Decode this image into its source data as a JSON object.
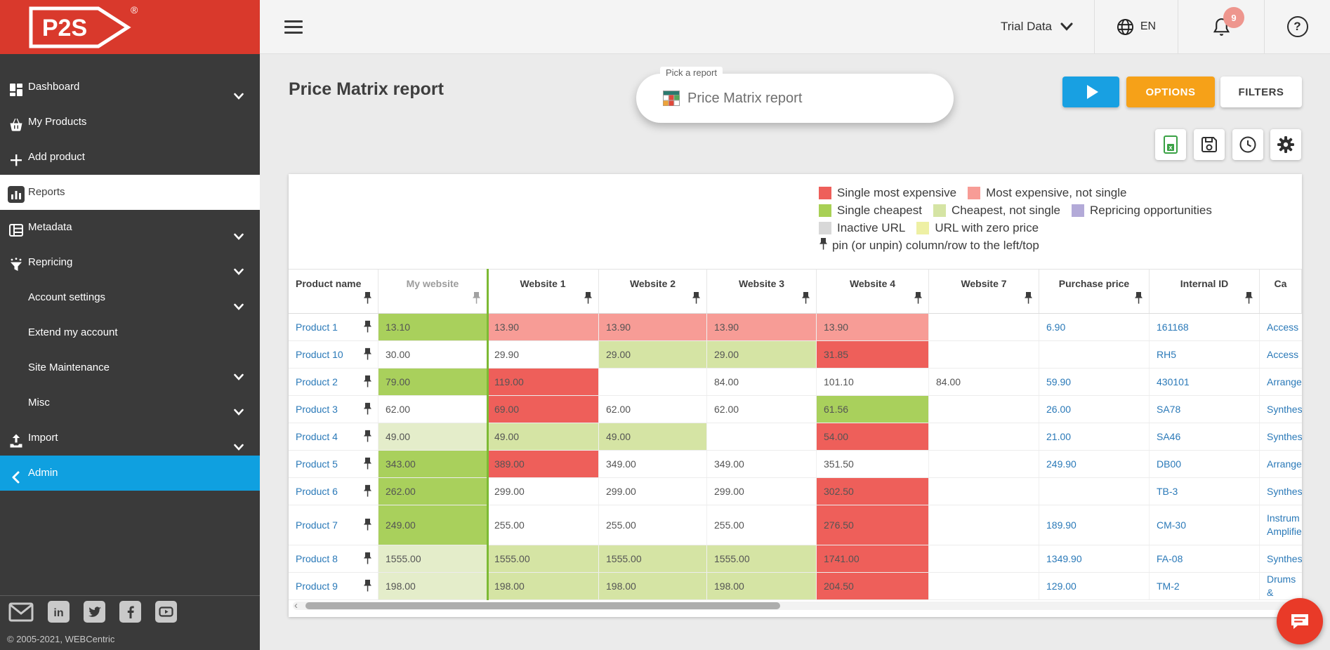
{
  "brand": {
    "logo_text": "P2S",
    "registered": "®",
    "copyright": "© 2005-2021, WEBCentric"
  },
  "sidebar": {
    "items": [
      {
        "label": "Dashboard",
        "icon": "dashboard",
        "chevron": true
      },
      {
        "label": "My Products",
        "icon": "basket"
      },
      {
        "label": "Add product",
        "icon": "plus"
      },
      {
        "label": "Reports",
        "icon": "reports",
        "active": true
      },
      {
        "label": "Metadata",
        "icon": "metadata",
        "chevron": true
      },
      {
        "label": "Repricing",
        "icon": "repricing",
        "chevron": true
      },
      {
        "label": "Account settings",
        "chevron": true
      },
      {
        "label": "Extend my account"
      },
      {
        "label": "Site Maintenance",
        "chevron": true
      },
      {
        "label": "Misc",
        "chevron": true
      },
      {
        "label": "Import",
        "icon": "import",
        "chevron": true
      },
      {
        "label": "Admin",
        "icon": "chevleft",
        "admin": true
      }
    ],
    "social": [
      "email",
      "linkedin",
      "twitter",
      "facebook",
      "youtube"
    ]
  },
  "topbar": {
    "account": "Trial Data",
    "language": "EN",
    "notification_count": "9",
    "help_label": "?"
  },
  "header": {
    "title": "Price Matrix report",
    "picker_label": "Pick a report",
    "picker_value": "Price Matrix report",
    "options_label": "OPTIONS",
    "filters_label": "FILTERS"
  },
  "legend": {
    "rows": [
      [
        {
          "label": "Single most expensive",
          "color": "#ee5f5a"
        },
        {
          "label": "Most expensive, not single",
          "color": "#f79c96"
        }
      ],
      [
        {
          "label": "Single cheapest",
          "color": "#a8d055"
        },
        {
          "label": "Cheapest, not single",
          "color": "#d5e4a4"
        },
        {
          "label": "Repricing opportunities",
          "color": "#b3aad8"
        }
      ],
      [
        {
          "label": "Inactive URL",
          "color": "#d8d8d8"
        },
        {
          "label": "URL with zero price",
          "color": "#eef0a4"
        }
      ]
    ],
    "pin_note": "pin (or unpin) column/row to the left/top"
  },
  "table": {
    "columns": [
      {
        "label": "Product name",
        "pin": true
      },
      {
        "label": "My website",
        "pin": true,
        "muted": true
      },
      {
        "label": "Website 1",
        "pin": true
      },
      {
        "label": "Website 2",
        "pin": true
      },
      {
        "label": "Website 3",
        "pin": true
      },
      {
        "label": "Website 4",
        "pin": true
      },
      {
        "label": "Website 7",
        "pin": true
      },
      {
        "label": "Purchase price",
        "pin": true
      },
      {
        "label": "Internal ID",
        "pin": true
      },
      {
        "label": "Ca",
        "pin": false
      }
    ],
    "rows": [
      {
        "product": "Product 1",
        "cells": [
          {
            "v": "13.10",
            "c": "sc"
          },
          {
            "v": "13.90",
            "c": "mens"
          },
          {
            "v": "13.90",
            "c": "mens"
          },
          {
            "v": "13.90",
            "c": "mens"
          },
          {
            "v": "13.90",
            "c": "mens"
          },
          {
            "v": "",
            "c": ""
          }
        ],
        "purchase_price": "6.90",
        "internal_id": "161168",
        "category": "Access"
      },
      {
        "product": "Product 10",
        "cells": [
          {
            "v": "30.00",
            "c": ""
          },
          {
            "v": "29.90",
            "c": ""
          },
          {
            "v": "29.00",
            "c": "cns"
          },
          {
            "v": "29.00",
            "c": "cns"
          },
          {
            "v": "31.85",
            "c": "sme"
          },
          {
            "v": "",
            "c": ""
          }
        ],
        "purchase_price": "",
        "internal_id": "RH5",
        "category": "Access"
      },
      {
        "product": "Product 2",
        "cells": [
          {
            "v": "79.00",
            "c": "sc"
          },
          {
            "v": "119.00",
            "c": "sme"
          },
          {
            "v": "",
            "c": ""
          },
          {
            "v": "84.00",
            "c": ""
          },
          {
            "v": "101.10",
            "c": ""
          },
          {
            "v": "84.00",
            "c": ""
          }
        ],
        "purchase_price": "59.90",
        "internal_id": "430101",
        "category": "Arrange"
      },
      {
        "product": "Product 3",
        "cells": [
          {
            "v": "62.00",
            "c": ""
          },
          {
            "v": "69.00",
            "c": "sme"
          },
          {
            "v": "62.00",
            "c": ""
          },
          {
            "v": "62.00",
            "c": ""
          },
          {
            "v": "61.56",
            "c": "sc"
          },
          {
            "v": "",
            "c": ""
          }
        ],
        "purchase_price": "26.00",
        "internal_id": "SA78",
        "category": "Synthes"
      },
      {
        "product": "Product 4",
        "cells": [
          {
            "v": "49.00",
            "c": "cnsp"
          },
          {
            "v": "49.00",
            "c": "cns"
          },
          {
            "v": "49.00",
            "c": "cns"
          },
          {
            "v": "",
            "c": ""
          },
          {
            "v": "54.00",
            "c": "sme"
          },
          {
            "v": "",
            "c": ""
          }
        ],
        "purchase_price": "21.00",
        "internal_id": "SA46",
        "category": "Synthes"
      },
      {
        "product": "Product 5",
        "cells": [
          {
            "v": "343.00",
            "c": "sc"
          },
          {
            "v": "389.00",
            "c": "sme"
          },
          {
            "v": "349.00",
            "c": ""
          },
          {
            "v": "349.00",
            "c": ""
          },
          {
            "v": "351.50",
            "c": ""
          },
          {
            "v": "",
            "c": ""
          }
        ],
        "purchase_price": "249.90",
        "internal_id": "DB00",
        "category": "Arrange"
      },
      {
        "product": "Product 6",
        "cells": [
          {
            "v": "262.00",
            "c": "sc"
          },
          {
            "v": "299.00",
            "c": ""
          },
          {
            "v": "299.00",
            "c": ""
          },
          {
            "v": "299.00",
            "c": ""
          },
          {
            "v": "302.50",
            "c": "sme"
          },
          {
            "v": "",
            "c": ""
          }
        ],
        "purchase_price": "",
        "internal_id": "TB-3",
        "category": "Synthes"
      },
      {
        "product": "Product 7",
        "cells": [
          {
            "v": "249.00",
            "c": "sc"
          },
          {
            "v": "255.00",
            "c": ""
          },
          {
            "v": "255.00",
            "c": ""
          },
          {
            "v": "255.00",
            "c": ""
          },
          {
            "v": "276.50",
            "c": "sme"
          },
          {
            "v": "",
            "c": ""
          }
        ],
        "purchase_price": "189.90",
        "internal_id": "CM-30",
        "category": "Instrum\nAmplifie"
      },
      {
        "product": "Product 8",
        "cells": [
          {
            "v": "1555.00",
            "c": "cnsp"
          },
          {
            "v": "1555.00",
            "c": "cns"
          },
          {
            "v": "1555.00",
            "c": "cns"
          },
          {
            "v": "1555.00",
            "c": "cns"
          },
          {
            "v": "1741.00",
            "c": "sme"
          },
          {
            "v": "",
            "c": ""
          }
        ],
        "purchase_price": "1349.90",
        "internal_id": "FA-08",
        "category": "Synthes"
      },
      {
        "product": "Product 9",
        "cells": [
          {
            "v": "198.00",
            "c": "cnsp"
          },
          {
            "v": "198.00",
            "c": "cns"
          },
          {
            "v": "198.00",
            "c": "cns"
          },
          {
            "v": "198.00",
            "c": "cns"
          },
          {
            "v": "204.50",
            "c": "sme"
          },
          {
            "v": "",
            "c": ""
          }
        ],
        "purchase_price": "129.00",
        "internal_id": "TM-2",
        "category": "Drums &"
      }
    ]
  },
  "colors": {
    "brand_red": "#d9392c",
    "admin_blue": "#0fa0e0",
    "accent_blue": "#18a0e2",
    "accent_orange": "#f6a118",
    "link_blue": "#2a79b8",
    "single_most_expensive": "#ee5f5a",
    "most_expensive_not_single": "#f79c96",
    "single_cheapest": "#a8d055",
    "cheapest_not_single": "#d5e4a4",
    "repricing_opportunities": "#b3aad8",
    "inactive_url": "#d8d8d8",
    "url_with_zero_price": "#eef0a4"
  }
}
